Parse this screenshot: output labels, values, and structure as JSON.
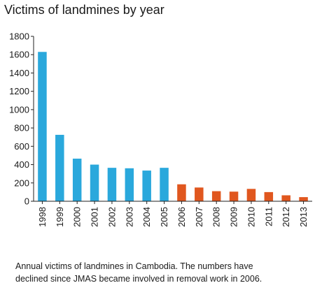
{
  "chart_data": {
    "type": "bar",
    "title": "Victims of landmines by year",
    "xlabel": "",
    "ylabel": "",
    "categories": [
      "1998",
      "1999",
      "2000",
      "2001",
      "2002",
      "2003",
      "2004",
      "2005",
      "2006",
      "2007",
      "2008",
      "2009",
      "2010",
      "2011",
      "2012",
      "2013"
    ],
    "values": [
      1630,
      725,
      465,
      400,
      365,
      360,
      335,
      365,
      185,
      150,
      110,
      105,
      135,
      100,
      65,
      45
    ],
    "ylim": [
      0,
      1800
    ],
    "yticks": [
      "0",
      "200",
      "400",
      "600",
      "800",
      "1000",
      "1200",
      "1400",
      "1600",
      "1800"
    ],
    "grid": false,
    "colors": {
      "before": "#2aa8dc",
      "after": "#e0571f"
    },
    "color_split_index": 8
  },
  "caption": {
    "line1": "Annual victims of landmines in Cambodia. The numbers have",
    "line2": "declined since JMAS became involved in removal work in 2006."
  }
}
